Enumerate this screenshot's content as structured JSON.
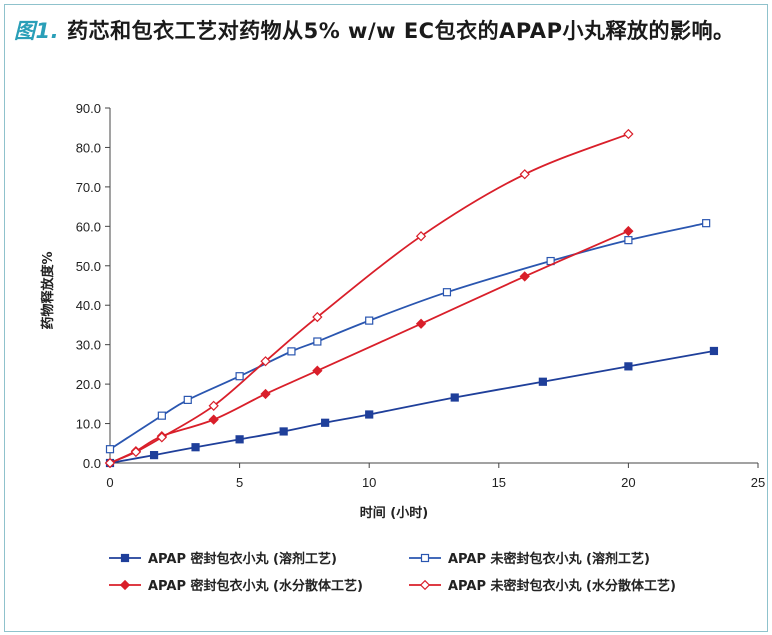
{
  "figure": {
    "label": "图1.",
    "title": "药芯和包衣工艺对药物从5% w/w EC包衣的APAP小丸释放的影响。"
  },
  "chart_data": {
    "type": "line",
    "xlabel": "时间 (小时)",
    "ylabel": "药物释放度%",
    "xlim": [
      0,
      25
    ],
    "ylim": [
      0,
      90
    ],
    "x_ticks": [
      "0",
      "5",
      "10",
      "15",
      "20",
      "25"
    ],
    "y_ticks": [
      "0.0",
      "10.0",
      "20.0",
      "30.0",
      "40.0",
      "50.0",
      "60.0",
      "70.0",
      "80.0",
      "90.0"
    ],
    "grid": false,
    "legend_position": "bottom",
    "series": [
      {
        "name": "APAP 密封包衣小丸 (溶剂工艺)",
        "color": "#1f3f9a",
        "marker": "filled-square",
        "x": [
          0,
          1.7,
          3.3,
          5,
          6.7,
          8.3,
          10,
          13.3,
          16.7,
          20,
          23.3
        ],
        "y": [
          0,
          2,
          4,
          6,
          8,
          10.2,
          12.3,
          16.6,
          20.6,
          24.5,
          28.4
        ]
      },
      {
        "name": "APAP 未密封包衣小丸 (溶剂工艺)",
        "color": "#2a56b0",
        "marker": "open-square",
        "x": [
          0,
          2,
          3,
          5,
          7,
          8,
          10,
          13,
          17,
          20,
          23
        ],
        "y": [
          3.5,
          12,
          16,
          22,
          28.3,
          30.8,
          36.1,
          43.3,
          51.2,
          56.5,
          60.8
        ]
      },
      {
        "name": "APAP 密封包衣小丸 (水分散体工艺)",
        "color": "#d91f2a",
        "marker": "filled-diamond",
        "x": [
          0,
          1,
          2,
          4,
          6,
          8,
          12,
          16,
          20
        ],
        "y": [
          0,
          3,
          6.8,
          11,
          17.5,
          23.4,
          35.3,
          47.3,
          58.8
        ]
      },
      {
        "name": "APAP 未密封包衣小丸 (水分散体工艺)",
        "color": "#d91f2a",
        "marker": "open-diamond",
        "x": [
          0,
          1,
          2,
          4,
          6,
          8,
          12,
          16,
          20
        ],
        "y": [
          0,
          2.8,
          6.5,
          14.5,
          25.8,
          37,
          57.5,
          73.2,
          83.4
        ]
      }
    ]
  }
}
